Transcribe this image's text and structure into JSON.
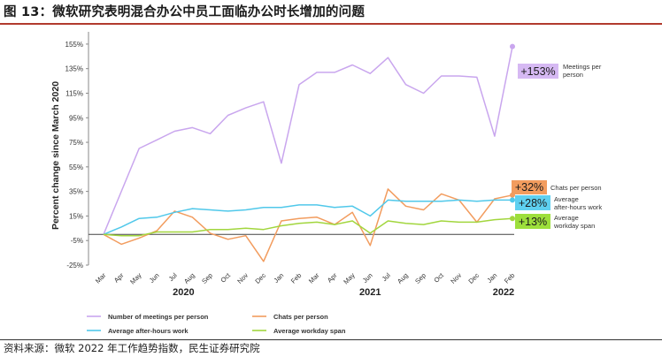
{
  "figure": {
    "title": "图 13：微软研究表明混合办公中员工面临办公时长增加的问题",
    "source": "资料来源：微软 2022 年工作趋势指数，民生证券研究院"
  },
  "chart_data": {
    "type": "line",
    "ylabel": "Percent change since March 2020",
    "ylim": [
      -25,
      165
    ],
    "yticks": [
      -25,
      -5,
      15,
      35,
      55,
      75,
      95,
      115,
      135,
      155
    ],
    "ytick_labels": [
      "-25%",
      "-5%",
      "15%",
      "35%",
      "55%",
      "75%",
      "95%",
      "115%",
      "135%",
      "155%"
    ],
    "categories": [
      "Mar",
      "Apr",
      "May",
      "Jun",
      "Jul",
      "Aug",
      "Sep",
      "Oct",
      "Nov",
      "Dec",
      "Jan",
      "Feb",
      "Mar",
      "Apr",
      "May",
      "Jun",
      "Jul",
      "Aug",
      "Sep",
      "Oct",
      "Nov",
      "Dec",
      "Jan",
      "Feb"
    ],
    "year_labels": [
      {
        "label": "2020",
        "at_index": 4.5
      },
      {
        "label": "2021",
        "at_index": 15
      },
      {
        "label": "2022",
        "at_index": 22.5
      }
    ],
    "series": [
      {
        "name": "Number of meetings per person",
        "color": "#c9a6ee",
        "end_label": "+153%",
        "end_note": "Meetings per person",
        "values": [
          0,
          35,
          70,
          77,
          84,
          87,
          82,
          97,
          103,
          108,
          58,
          122,
          132,
          132,
          138,
          131,
          144,
          122,
          115,
          129,
          129,
          128,
          80,
          153
        ]
      },
      {
        "name": "Chats per person",
        "color": "#f29c5e",
        "end_label": "+32%",
        "end_note": "Chats per person",
        "values": [
          0,
          -8,
          -3,
          3,
          19,
          14,
          1,
          -4,
          -1,
          -22,
          11,
          13,
          14,
          8,
          18,
          -9,
          37,
          23,
          20,
          33,
          28,
          10,
          29,
          32
        ]
      },
      {
        "name": "Average after-hours work",
        "color": "#50c8ea",
        "end_label": "+28%",
        "end_note": "Average after-hours work",
        "values": [
          0,
          6,
          13,
          14,
          18,
          21,
          20,
          19,
          20,
          22,
          22,
          24,
          24,
          22,
          23,
          15,
          28,
          27,
          27,
          27,
          28,
          27,
          28,
          28
        ]
      },
      {
        "name": "Average workday span",
        "color": "#a2d63e",
        "end_label": "+13%",
        "end_note": "Average workday span",
        "values": [
          0,
          -1,
          -1,
          2,
          2,
          2,
          4,
          4,
          5,
          4,
          7,
          9,
          10,
          8,
          11,
          1,
          11,
          9,
          8,
          11,
          10,
          10,
          12,
          13
        ]
      }
    ],
    "end_notes": [
      {
        "series": 0,
        "lines": [
          "Meetings per",
          "person"
        ],
        "badge_color": "#d6b9f3"
      },
      {
        "series": 1,
        "lines": [
          "Chats per person"
        ],
        "badge_color": "#f29c5e"
      },
      {
        "series": 2,
        "lines": [
          "Average",
          "after-hours work"
        ],
        "badge_color": "#5fd0f0"
      },
      {
        "series": 3,
        "lines": [
          "Average",
          "workday span"
        ],
        "badge_color": "#9ddf3c"
      }
    ],
    "legend_position": "bottom",
    "legend_entries": [
      "Number of meetings per person",
      "Chats per person",
      "Average after-hours work",
      "Average workday span"
    ]
  }
}
